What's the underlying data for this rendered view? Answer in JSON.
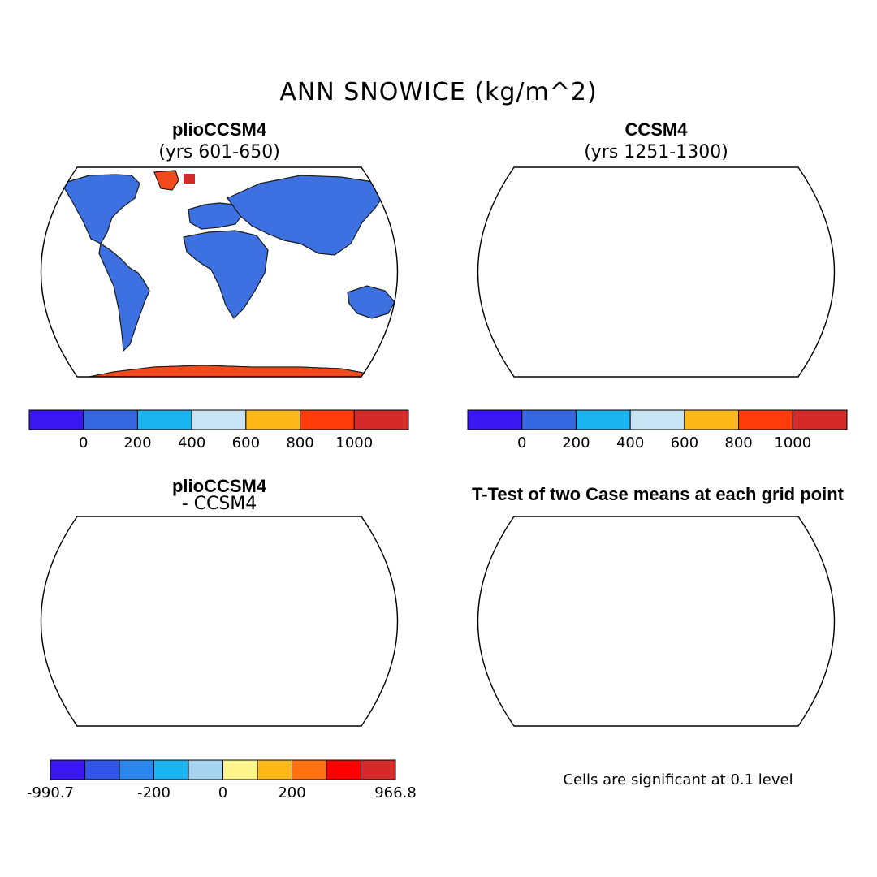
{
  "title": "ANN SNOWICE (kg/m^2)",
  "panels": [
    {
      "title": "plioCCSM4",
      "subtitle": "(yrs 601-650)"
    },
    {
      "title": "CCSM4",
      "subtitle": "(yrs 1251-1300)"
    },
    {
      "title": "plioCCSM4",
      "subtitle": "- CCSM4"
    },
    {
      "title": "T-Test of two Case means at each grid point",
      "subtitle": ""
    }
  ],
  "colorbar_abs": {
    "colors": [
      "#3a16f0",
      "#3568e0",
      "#1ab4f0",
      "#c8e4f4",
      "#ffb81a",
      "#ff3c0a",
      "#d42a2a"
    ],
    "labels": [
      "0",
      "200",
      "400",
      "600",
      "800",
      "1000"
    ]
  },
  "colorbar_diff": {
    "colors": [
      "#3a16f0",
      "#3054e6",
      "#2a86ea",
      "#1ab4f0",
      "#a6d4f0",
      "#fdf48c",
      "#ffb81a",
      "#ff7010",
      "#ff0000",
      "#d42a2a"
    ],
    "labels": [
      "-990.7",
      "-200",
      "0",
      "200",
      "966.8"
    ]
  },
  "ttest_note": "Cells are significant at 0.1 level",
  "map_colors": {
    "land_snow": "#3d71e2",
    "ice_sheet": "#f04a1c",
    "diff_light": "#a8d2f0",
    "diff_yellow": "#f6ee8a",
    "significant": "#ff0000",
    "greenland_diff": "#3a16f0"
  }
}
